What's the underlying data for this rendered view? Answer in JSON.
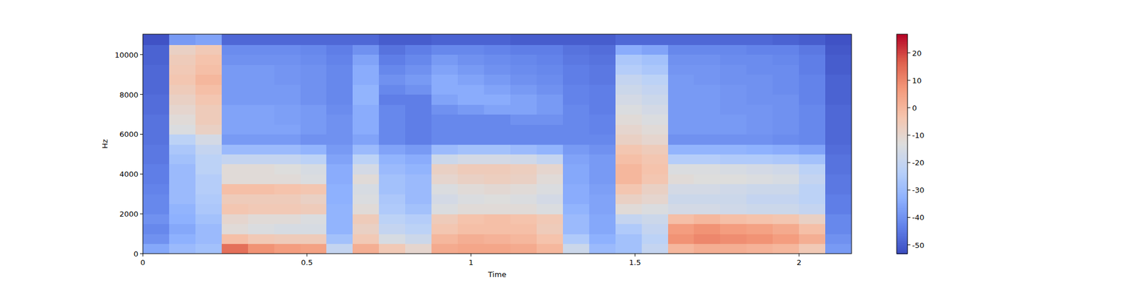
{
  "chart_data": {
    "type": "heatmap",
    "xlabel": "Time",
    "ylabel": "Hz",
    "xlim": [
      0,
      2.16
    ],
    "ylim": [
      0,
      11025
    ],
    "xticks": [
      0,
      0.5,
      1,
      1.5,
      2
    ],
    "yticks": [
      0,
      2000,
      4000,
      6000,
      8000,
      10000
    ],
    "x_bins": [
      0,
      0.08,
      0.16,
      0.24,
      0.32,
      0.4,
      0.48,
      0.56,
      0.64,
      0.72,
      0.8,
      0.88,
      0.96,
      1.04,
      1.12,
      1.2,
      1.28,
      1.36,
      1.44,
      1.52,
      1.6,
      1.68,
      1.76,
      1.84,
      1.92,
      2.0,
      2.08,
      2.16
    ],
    "y_bins": [
      0,
      500,
      1000,
      1500,
      2000,
      2500,
      3000,
      3500,
      4000,
      4500,
      5000,
      5500,
      6000,
      6500,
      7000,
      7500,
      8000,
      8500,
      9000,
      9500,
      10000,
      10500,
      11025
    ],
    "colorbar_lim": [
      -53.2,
      26.8
    ],
    "colorbar_ticks": [
      -50,
      -40,
      -30,
      -20,
      -10,
      0,
      10,
      20
    ],
    "cells": [
      [
        -35,
        -30,
        -28,
        14,
        8,
        6,
        5,
        -20,
        2,
        -5,
        -10,
        3,
        4,
        4,
        3,
        0,
        -18,
        -30,
        -28,
        -20,
        0,
        2,
        2,
        1,
        0,
        -5,
        -38
      ],
      [
        -40,
        -33,
        -30,
        -2,
        -5,
        -6,
        -6,
        -28,
        -5,
        -15,
        -18,
        0,
        2,
        1,
        0,
        -3,
        -25,
        -33,
        -28,
        -22,
        8,
        10,
        9,
        8,
        6,
        2,
        -40
      ],
      [
        -42,
        -35,
        -30,
        -12,
        -14,
        -15,
        -15,
        -32,
        -8,
        -20,
        -22,
        -4,
        -2,
        -2,
        -2,
        -6,
        -30,
        -35,
        -25,
        -20,
        6,
        8,
        6,
        5,
        3,
        -2,
        -42
      ],
      [
        -40,
        -33,
        -28,
        -10,
        -12,
        -12,
        -14,
        -32,
        -6,
        -22,
        -24,
        -6,
        -3,
        -2,
        -3,
        -5,
        -30,
        -35,
        -20,
        -18,
        -2,
        0,
        -2,
        -3,
        -4,
        -8,
        -42
      ],
      [
        -42,
        -32,
        -26,
        -4,
        -5,
        -5,
        -6,
        -32,
        -12,
        -25,
        -28,
        -14,
        -12,
        -12,
        -12,
        -14,
        -32,
        -36,
        -12,
        -14,
        -16,
        -16,
        -17,
        -18,
        -18,
        -20,
        -44
      ],
      [
        -42,
        -30,
        -25,
        -6,
        -6,
        -6,
        -8,
        -33,
        -14,
        -26,
        -30,
        -16,
        -14,
        -13,
        -14,
        -16,
        -34,
        -36,
        -8,
        -10,
        -18,
        -18,
        -18,
        -20,
        -20,
        -22,
        -44
      ],
      [
        -43,
        -30,
        -24,
        -2,
        -2,
        -3,
        -4,
        -33,
        -15,
        -28,
        -30,
        -14,
        -12,
        -11,
        -12,
        -14,
        -34,
        -37,
        -4,
        -8,
        -16,
        -16,
        -17,
        -18,
        -18,
        -22,
        -45
      ],
      [
        -44,
        -30,
        -24,
        -12,
        -12,
        -12,
        -14,
        -34,
        -12,
        -28,
        -30,
        -10,
        -8,
        -7,
        -8,
        -12,
        -35,
        -38,
        0,
        -4,
        -12,
        -13,
        -13,
        -14,
        -15,
        -20,
        -45
      ],
      [
        -44,
        -30,
        -22,
        -12,
        -12,
        -13,
        -15,
        -34,
        -16,
        -30,
        -32,
        -8,
        -6,
        -6,
        -7,
        -10,
        -35,
        -38,
        0,
        -3,
        -14,
        -14,
        -15,
        -16,
        -17,
        -22,
        -46
      ],
      [
        -45,
        -28,
        -22,
        -20,
        -20,
        -20,
        -22,
        -36,
        -22,
        -32,
        -34,
        -18,
        -16,
        -16,
        -17,
        -20,
        -36,
        -38,
        -2,
        -4,
        -24,
        -24,
        -25,
        -25,
        -26,
        -28,
        -46
      ],
      [
        -45,
        -26,
        -20,
        -30,
        -30,
        -30,
        -32,
        -38,
        -30,
        -36,
        -38,
        -30,
        -28,
        -28,
        -30,
        -32,
        -38,
        -40,
        -4,
        -6,
        -32,
        -32,
        -32,
        -33,
        -34,
        -36,
        -47
      ],
      [
        -46,
        -22,
        -16,
        -38,
        -38,
        -38,
        -40,
        -40,
        -36,
        -42,
        -44,
        -42,
        -42,
        -42,
        -42,
        -42,
        -42,
        -42,
        -8,
        -10,
        -40,
        -40,
        -40,
        -40,
        -41,
        -42,
        -48
      ],
      [
        -46,
        -14,
        -8,
        -36,
        -36,
        -36,
        -38,
        -40,
        -34,
        -42,
        -44,
        -42,
        -42,
        -42,
        -42,
        -42,
        -42,
        -43,
        -10,
        -12,
        -38,
        -38,
        -38,
        -39,
        -40,
        -42,
        -48
      ],
      [
        -46,
        -12,
        -6,
        -36,
        -36,
        -37,
        -38,
        -40,
        -34,
        -42,
        -44,
        -42,
        -42,
        -42,
        -40,
        -40,
        -42,
        -43,
        -12,
        -14,
        -38,
        -38,
        -38,
        -39,
        -40,
        -42,
        -48
      ],
      [
        -47,
        -10,
        -6,
        -36,
        -36,
        -37,
        -38,
        -41,
        -34,
        -42,
        -44,
        -40,
        -38,
        -36,
        -36,
        -38,
        -42,
        -44,
        -14,
        -16,
        -38,
        -38,
        -39,
        -39,
        -40,
        -42,
        -48
      ],
      [
        -47,
        -8,
        -4,
        -38,
        -38,
        -38,
        -40,
        -42,
        -32,
        -44,
        -44,
        -36,
        -34,
        -34,
        -36,
        -38,
        -43,
        -44,
        -16,
        -18,
        -38,
        -38,
        -39,
        -40,
        -40,
        -43,
        -49
      ],
      [
        -48,
        -6,
        -2,
        -38,
        -38,
        -38,
        -40,
        -42,
        -32,
        -42,
        -40,
        -34,
        -34,
        -36,
        -38,
        -40,
        -43,
        -44,
        -18,
        -20,
        -38,
        -38,
        -39,
        -40,
        -41,
        -43,
        -49
      ],
      [
        -48,
        -4,
        0,
        -38,
        -38,
        -39,
        -40,
        -42,
        -34,
        -40,
        -38,
        -34,
        -36,
        -38,
        -40,
        -41,
        -44,
        -45,
        -20,
        -22,
        -38,
        -39,
        -40,
        -40,
        -41,
        -43,
        -49
      ],
      [
        -48,
        -5,
        -2,
        -38,
        -38,
        -39,
        -40,
        -42,
        -34,
        -42,
        -40,
        -36,
        -38,
        -40,
        -41,
        -42,
        -44,
        -45,
        -24,
        -26,
        -39,
        -39,
        -40,
        -41,
        -41,
        -44,
        -50
      ],
      [
        -49,
        -6,
        -3,
        -40,
        -40,
        -40,
        -41,
        -43,
        -36,
        -44,
        -42,
        -38,
        -40,
        -41,
        -42,
        -43,
        -45,
        -46,
        -26,
        -28,
        -40,
        -40,
        -41,
        -41,
        -42,
        -44,
        -50
      ],
      [
        -49,
        -8,
        -5,
        -41,
        -41,
        -41,
        -42,
        -44,
        -40,
        -46,
        -44,
        -42,
        -42,
        -43,
        -44,
        -44,
        -46,
        -47,
        -34,
        -36,
        -42,
        -42,
        -42,
        -43,
        -43,
        -45,
        -51
      ],
      [
        -52,
        -38,
        -36,
        -48,
        -48,
        -48,
        -48,
        -48,
        -48,
        -50,
        -50,
        -49,
        -49,
        -49,
        -50,
        -50,
        -50,
        -50,
        -48,
        -48,
        -48,
        -48,
        -48,
        -48,
        -49,
        -50,
        -52
      ]
    ]
  }
}
